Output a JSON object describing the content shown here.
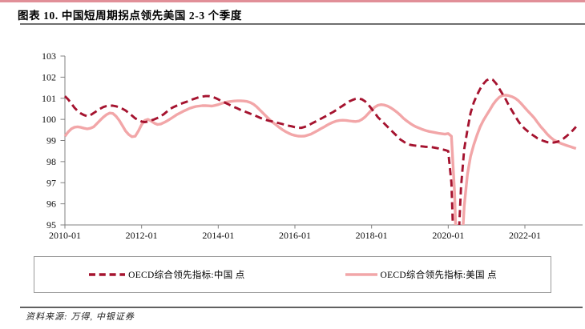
{
  "header": {
    "title": "图表 10. 中国短周期拐点领先美国 2-3 个季度"
  },
  "footer": {
    "source": "资料来源: 万得, 中银证券"
  },
  "colors": {
    "top_accent": "#e18f98",
    "china_line": "#a5132f",
    "us_line": "#f2a6a8",
    "axis": "#808080",
    "divider_dark": "#6f6f6f",
    "legend_border": "#9a9a9a"
  },
  "chart_data": {
    "type": "line",
    "title": "中国短周期拐点领先美国 2-3 个季度",
    "xlabel": "",
    "ylabel": "",
    "ylim": [
      95,
      103
    ],
    "y_ticks": [
      103,
      102,
      101,
      100,
      99,
      98,
      97,
      96,
      95
    ],
    "x_tick_labels": [
      "2010-01",
      "2012-01",
      "2014-01",
      "2016-01",
      "2018-01",
      "2020-01",
      "2022-01"
    ],
    "x_start": "2010-01",
    "x_end": "2023-05",
    "x_unit": "month",
    "grid": false,
    "legend_position": "bottom-box",
    "series": [
      {
        "name": "OECD综合领先指标:中国 点",
        "style": "dashed",
        "color": "#a5132f",
        "values": [
          101.1,
          100.95,
          100.75,
          100.55,
          100.4,
          100.28,
          100.2,
          100.15,
          100.2,
          100.3,
          100.4,
          100.5,
          100.58,
          100.63,
          100.65,
          100.65,
          100.62,
          100.57,
          100.5,
          100.42,
          100.3,
          100.18,
          100.05,
          99.97,
          99.9,
          99.87,
          99.9,
          99.95,
          100.0,
          100.07,
          100.15,
          100.25,
          100.38,
          100.5,
          100.58,
          100.65,
          100.72,
          100.78,
          100.83,
          100.88,
          100.95,
          101.0,
          101.05,
          101.08,
          101.1,
          101.1,
          101.07,
          101.02,
          100.95,
          100.87,
          100.8,
          100.73,
          100.65,
          100.58,
          100.52,
          100.45,
          100.4,
          100.33,
          100.27,
          100.22,
          100.15,
          100.08,
          100.02,
          99.97,
          99.93,
          99.9,
          99.86,
          99.82,
          99.78,
          99.74,
          99.7,
          99.67,
          99.63,
          99.6,
          99.6,
          99.64,
          99.7,
          99.78,
          99.86,
          99.94,
          100.02,
          100.1,
          100.18,
          100.27,
          100.35,
          100.45,
          100.55,
          100.65,
          100.75,
          100.85,
          100.92,
          100.97,
          100.98,
          100.95,
          100.85,
          100.7,
          100.5,
          100.3,
          100.1,
          99.95,
          99.8,
          99.65,
          99.5,
          99.35,
          99.2,
          99.05,
          98.95,
          98.85,
          98.8,
          98.77,
          98.75,
          98.73,
          98.72,
          98.7,
          98.7,
          98.68,
          98.65,
          98.62,
          98.58,
          98.55,
          98.5,
          97.0,
          92.5,
          93.5,
          96.8,
          98.6,
          99.5,
          100.3,
          100.8,
          101.15,
          101.45,
          101.68,
          101.85,
          101.92,
          101.87,
          101.7,
          101.45,
          101.2,
          100.95,
          100.65,
          100.4,
          100.15,
          99.9,
          99.7,
          99.55,
          99.42,
          99.3,
          99.2,
          99.1,
          99.03,
          98.97,
          98.92,
          98.9,
          98.9,
          98.93,
          98.98,
          99.08,
          99.2,
          99.33,
          99.48,
          99.65
        ]
      },
      {
        "name": "OECD综合领先指标:美国 点",
        "style": "solid",
        "color": "#f2a6a8",
        "values": [
          99.2,
          99.4,
          99.55,
          99.63,
          99.65,
          99.62,
          99.58,
          99.55,
          99.58,
          99.65,
          99.8,
          99.95,
          100.1,
          100.22,
          100.3,
          100.28,
          100.15,
          99.95,
          99.7,
          99.45,
          99.28,
          99.18,
          99.2,
          99.45,
          99.75,
          99.95,
          100.0,
          99.92,
          99.82,
          99.76,
          99.78,
          99.85,
          99.93,
          100.02,
          100.12,
          100.22,
          100.3,
          100.38,
          100.45,
          100.52,
          100.57,
          100.61,
          100.63,
          100.65,
          100.65,
          100.64,
          100.63,
          100.66,
          100.7,
          100.75,
          100.8,
          100.83,
          100.85,
          100.87,
          100.88,
          100.88,
          100.87,
          100.85,
          100.8,
          100.72,
          100.6,
          100.45,
          100.3,
          100.15,
          100.0,
          99.87,
          99.75,
          99.63,
          99.52,
          99.43,
          99.35,
          99.28,
          99.24,
          99.21,
          99.2,
          99.21,
          99.25,
          99.3,
          99.38,
          99.46,
          99.55,
          99.63,
          99.72,
          99.8,
          99.87,
          99.92,
          99.95,
          99.96,
          99.95,
          99.93,
          99.91,
          99.9,
          99.92,
          100.0,
          100.12,
          100.28,
          100.45,
          100.58,
          100.67,
          100.7,
          100.68,
          100.63,
          100.55,
          100.45,
          100.33,
          100.2,
          100.05,
          99.93,
          99.82,
          99.72,
          99.64,
          99.58,
          99.52,
          99.47,
          99.43,
          99.4,
          99.37,
          99.34,
          99.32,
          99.3,
          99.33,
          99.2,
          96.5,
          91.5,
          93.2,
          95.9,
          97.4,
          98.25,
          98.8,
          99.25,
          99.65,
          99.95,
          100.2,
          100.45,
          100.7,
          100.9,
          101.05,
          101.13,
          101.15,
          101.12,
          101.07,
          101.0,
          100.88,
          100.72,
          100.55,
          100.38,
          100.22,
          100.05,
          99.85,
          99.65,
          99.48,
          99.3,
          99.15,
          99.03,
          98.95,
          98.88,
          98.82,
          98.77,
          98.72,
          98.67,
          98.62
        ]
      }
    ]
  }
}
